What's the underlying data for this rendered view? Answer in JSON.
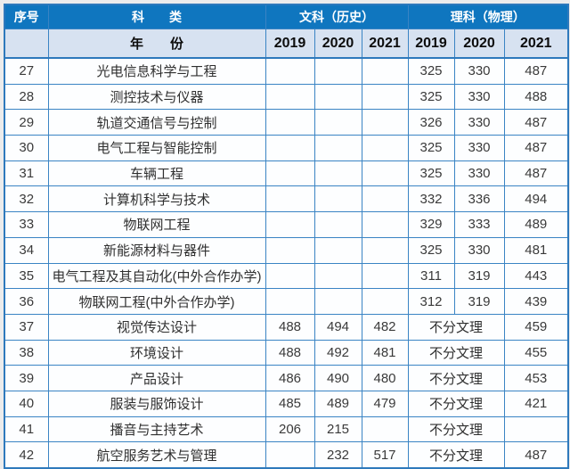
{
  "colors": {
    "header_bg": "#0f76bf",
    "subheader_bg": "#d7e2f1",
    "border": "#3a84c4",
    "outer_border": "#2e79bc",
    "page_bg": "#ececec"
  },
  "table": {
    "header": {
      "col_num": "序号",
      "col_category": "科　　类",
      "group_wen": "文科（历史）",
      "group_li": "理科（物理）",
      "year_label": "年　　份",
      "years": [
        "2019",
        "2020",
        "2021",
        "2019",
        "2020",
        "2021"
      ]
    },
    "merged_cell_label": "不分文理",
    "rows": [
      {
        "num": "27",
        "major": "光电信息科学与工程",
        "wen": [
          "",
          "",
          ""
        ],
        "li_merged": false,
        "li": [
          "325",
          "330",
          "487"
        ]
      },
      {
        "num": "28",
        "major": "测控技术与仪器",
        "wen": [
          "",
          "",
          ""
        ],
        "li_merged": false,
        "li": [
          "325",
          "330",
          "488"
        ]
      },
      {
        "num": "29",
        "major": "轨道交通信号与控制",
        "wen": [
          "",
          "",
          ""
        ],
        "li_merged": false,
        "li": [
          "326",
          "330",
          "487"
        ]
      },
      {
        "num": "30",
        "major": "电气工程与智能控制",
        "wen": [
          "",
          "",
          ""
        ],
        "li_merged": false,
        "li": [
          "325",
          "330",
          "487"
        ]
      },
      {
        "num": "31",
        "major": "车辆工程",
        "wen": [
          "",
          "",
          ""
        ],
        "li_merged": false,
        "li": [
          "325",
          "330",
          "487"
        ]
      },
      {
        "num": "32",
        "major": "计算机科学与技术",
        "wen": [
          "",
          "",
          ""
        ],
        "li_merged": false,
        "li": [
          "332",
          "336",
          "494"
        ]
      },
      {
        "num": "33",
        "major": "物联网工程",
        "wen": [
          "",
          "",
          ""
        ],
        "li_merged": false,
        "li": [
          "329",
          "333",
          "489"
        ]
      },
      {
        "num": "34",
        "major": "新能源材料与器件",
        "wen": [
          "",
          "",
          ""
        ],
        "li_merged": false,
        "li": [
          "325",
          "330",
          "481"
        ]
      },
      {
        "num": "35",
        "major": "电气工程及其自动化(中外合作办学)",
        "wen": [
          "",
          "",
          ""
        ],
        "li_merged": false,
        "li": [
          "311",
          "319",
          "443"
        ]
      },
      {
        "num": "36",
        "major": "物联网工程(中外合作办学)",
        "wen": [
          "",
          "",
          ""
        ],
        "li_merged": false,
        "li": [
          "312",
          "319",
          "439"
        ]
      },
      {
        "num": "37",
        "major": "视觉传达设计",
        "wen": [
          "488",
          "494",
          "482"
        ],
        "li_merged": true,
        "li_2021": "459"
      },
      {
        "num": "38",
        "major": "环境设计",
        "wen": [
          "488",
          "492",
          "481"
        ],
        "li_merged": true,
        "li_2021": "455"
      },
      {
        "num": "39",
        "major": "产品设计",
        "wen": [
          "486",
          "490",
          "480"
        ],
        "li_merged": true,
        "li_2021": "453"
      },
      {
        "num": "40",
        "major": "服装与服饰设计",
        "wen": [
          "485",
          "489",
          "479"
        ],
        "li_merged": true,
        "li_2021": "421"
      },
      {
        "num": "41",
        "major": "播音与主持艺术",
        "wen": [
          "206",
          "215",
          ""
        ],
        "li_merged": true,
        "li_2021": ""
      },
      {
        "num": "42",
        "major": "航空服务艺术与管理",
        "wen": [
          "",
          "232",
          "517"
        ],
        "li_merged": true,
        "li_2021": "487"
      }
    ]
  }
}
